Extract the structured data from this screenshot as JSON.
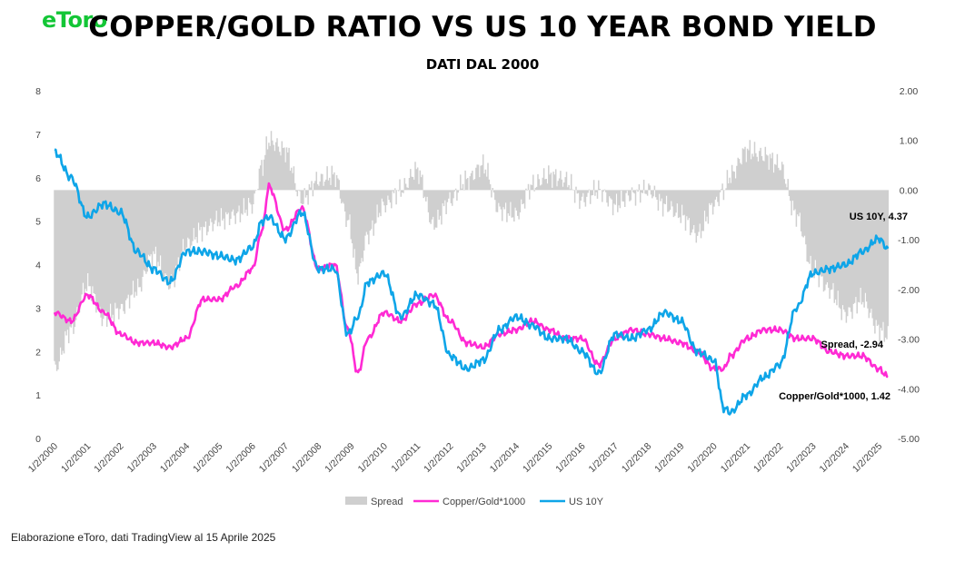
{
  "header": {
    "logo": "eToro",
    "title": "COPPER/GOLD RATIO VS US 10 YEAR BOND YIELD",
    "subtitle": "DATI DAL 2000"
  },
  "footer": {
    "source": "Elaborazione eToro, dati TradingView al 15 Aprile 2025"
  },
  "chart_data": {
    "type": "line",
    "title": "COPPER/GOLD RATIO VS US 10 YEAR BOND YIELD",
    "subtitle": "DATI DAL 2000",
    "categories": [
      "1/2/2000",
      "1/2/2001",
      "1/2/2002",
      "1/2/2003",
      "1/2/2004",
      "1/2/2005",
      "1/2/2006",
      "1/2/2007",
      "1/2/2008",
      "1/2/2009",
      "1/2/2010",
      "1/2/2011",
      "1/2/2012",
      "1/2/2013",
      "1/2/2014",
      "1/2/2015",
      "1/2/2016",
      "1/2/2017",
      "1/2/2018",
      "1/2/2019",
      "1/2/2020",
      "1/2/2021",
      "1/2/2022",
      "1/2/2023",
      "1/2/2024",
      "1/2/2025"
    ],
    "x": [
      2000.0,
      2000.5,
      2001.0,
      2001.5,
      2002.0,
      2002.5,
      2003.0,
      2003.5,
      2004.0,
      2004.5,
      2005.0,
      2005.5,
      2006.0,
      2006.3,
      2006.5,
      2007.0,
      2007.5,
      2008.0,
      2008.5,
      2008.9,
      2009.2,
      2009.5,
      2010.0,
      2010.5,
      2011.0,
      2011.5,
      2012.0,
      2012.5,
      2013.0,
      2013.5,
      2014.0,
      2014.5,
      2015.0,
      2015.5,
      2016.0,
      2016.5,
      2017.0,
      2017.5,
      2018.0,
      2018.5,
      2019.0,
      2019.5,
      2020.0,
      2020.3,
      2020.5,
      2021.0,
      2021.5,
      2022.0,
      2022.5,
      2023.0,
      2023.5,
      2024.0,
      2024.5,
      2025.0,
      2025.28
    ],
    "y_left": {
      "min": 0,
      "max": 8,
      "ticks": [
        "0",
        "1",
        "2",
        "3",
        "4",
        "5",
        "6",
        "7",
        "8"
      ]
    },
    "y_right": {
      "min": -5,
      "max": 2,
      "ticks": [
        "-5.00",
        "-4.00",
        "-3.00",
        "-2.00",
        "-1.00",
        "0.00",
        "1.00",
        "2.00"
      ]
    },
    "legend_position": "bottom",
    "series": [
      {
        "name": "Spread",
        "kind": "area",
        "axis": "right",
        "color": "#cfcfcf",
        "values": [
          -3.6,
          -2.8,
          -1.9,
          -2.6,
          -2.4,
          -2.0,
          -1.3,
          -1.9,
          -1.1,
          -0.8,
          -0.6,
          -0.5,
          -0.3,
          0.5,
          1.0,
          0.8,
          -0.2,
          0.2,
          0.3,
          -0.6,
          -1.7,
          -0.9,
          -0.3,
          0.0,
          0.4,
          -0.7,
          -0.2,
          0.2,
          0.5,
          -0.4,
          -0.5,
          0.1,
          0.3,
          0.2,
          -0.2,
          0.0,
          -0.3,
          -0.1,
          0.0,
          -0.3,
          -0.5,
          -0.9,
          -0.3,
          0.0,
          0.3,
          0.8,
          0.7,
          0.5,
          -0.5,
          -1.6,
          -2.0,
          -2.5,
          -2.2,
          -2.8,
          -2.94
        ]
      },
      {
        "name": "Copper/Gold*1000",
        "kind": "line",
        "axis": "left",
        "color": "#ff2ad4",
        "values": [
          2.9,
          2.7,
          3.3,
          2.9,
          2.4,
          2.2,
          2.2,
          2.1,
          2.3,
          3.2,
          3.2,
          3.5,
          3.9,
          4.8,
          5.8,
          4.8,
          5.3,
          3.9,
          4.0,
          2.5,
          1.5,
          2.3,
          2.9,
          2.7,
          3.1,
          3.3,
          2.7,
          2.2,
          2.1,
          2.4,
          2.5,
          2.7,
          2.5,
          2.3,
          2.3,
          1.7,
          2.3,
          2.5,
          2.4,
          2.3,
          2.2,
          2.0,
          1.6,
          1.6,
          1.9,
          2.3,
          2.5,
          2.5,
          2.3,
          2.3,
          2.0,
          1.9,
          1.9,
          1.6,
          1.42
        ]
      },
      {
        "name": "US 10Y",
        "kind": "line",
        "axis": "left",
        "color": "#0ea5e8",
        "values": [
          6.6,
          6.0,
          5.1,
          5.4,
          5.2,
          4.3,
          3.9,
          3.6,
          4.3,
          4.3,
          4.2,
          4.1,
          4.4,
          5.0,
          5.1,
          4.6,
          5.2,
          3.9,
          3.9,
          2.4,
          2.8,
          3.6,
          3.8,
          2.8,
          3.3,
          3.1,
          1.9,
          1.6,
          1.8,
          2.5,
          2.8,
          2.6,
          2.3,
          2.3,
          2.0,
          1.5,
          2.4,
          2.3,
          2.5,
          2.9,
          2.7,
          2.0,
          1.8,
          0.7,
          0.6,
          1.0,
          1.4,
          1.7,
          3.0,
          3.8,
          3.9,
          4.0,
          4.3,
          4.6,
          4.37
        ]
      }
    ],
    "annotations": [
      {
        "text": "US 10Y, 4.37",
        "series": "US 10Y"
      },
      {
        "text": "Spread, -2.94",
        "series": "Spread"
      },
      {
        "text": "Copper/Gold*1000, 1.42",
        "series": "Copper/Gold*1000"
      }
    ]
  }
}
